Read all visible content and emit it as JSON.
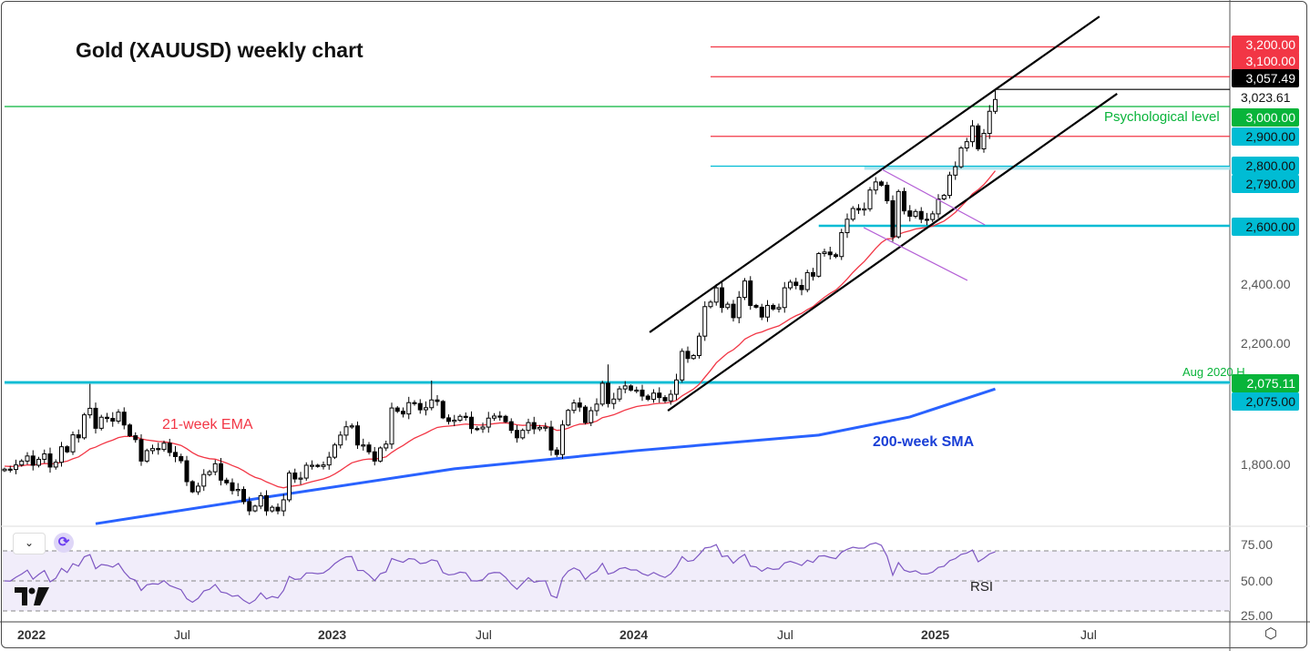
{
  "header": {
    "title": "Gold (XAUUSD) weekly chart"
  },
  "annotations": {
    "psychological": "Psychological level",
    "aug2020": "Aug 2020 H",
    "ema": "21-week EMA",
    "sma": "200-week SMA",
    "rsi": "RSI"
  },
  "price_axis": {
    "ticks": [
      "2,400.00",
      "2,200.00",
      "1,800.00"
    ],
    "last_close": "3,023.61",
    "badges": [
      {
        "label": "3,200.00",
        "bg": "#f23645",
        "fg": "#ffffff"
      },
      {
        "label": "3,100.00",
        "bg": "#f23645",
        "fg": "#ffffff"
      },
      {
        "label": "3,057.49",
        "bg": "#000000",
        "fg": "#ffffff"
      },
      {
        "label": "3,000.00",
        "bg": "#08b43a",
        "fg": "#ffffff"
      },
      {
        "label": "2,900.00",
        "bg": "#00bcd4",
        "fg": "#111111"
      },
      {
        "label": "2,800.00",
        "bg": "#00bcd4",
        "fg": "#111111"
      },
      {
        "label": "2,790.00",
        "bg": "#00bcd4",
        "fg": "#111111"
      },
      {
        "label": "2,600.00",
        "bg": "#00bcd4",
        "fg": "#111111"
      },
      {
        "label": "2,075.11",
        "bg": "#08b43a",
        "fg": "#ffffff"
      },
      {
        "label": "2,075.00",
        "bg": "#00bcd4",
        "fg": "#111111"
      }
    ]
  },
  "rsi_axis": {
    "ticks": [
      "75.00",
      "50.00",
      "25.00"
    ]
  },
  "time_axis": {
    "ticks": [
      "2022",
      "Jul",
      "2023",
      "Jul",
      "2024",
      "Jul",
      "2025",
      "Jul"
    ]
  },
  "controls": {
    "collapse": "⌄",
    "refresh": "⟳",
    "settings": "⬡"
  },
  "colors": {
    "up": "#ffffff",
    "down": "#000000",
    "ema": "#f23645",
    "sma": "#2962ff",
    "rsi": "#7e57c2",
    "level_green": "#08b43a",
    "level_cyan": "#00bcd4",
    "level_red": "#f23645"
  },
  "chart_data": {
    "type": "candlestick",
    "title": "Gold (XAUUSD) weekly chart",
    "interval": "weekly",
    "x_range": [
      "Dec 2021",
      "Mar 2025"
    ],
    "ylim": [
      1600,
      3300
    ],
    "closes": [
      1784,
      1783,
      1798,
      1811,
      1828,
      1797,
      1817,
      1835,
      1791,
      1807,
      1859,
      1842,
      1899,
      1889,
      1966,
      1988,
      1921,
      1958,
      1954,
      1945,
      1975,
      1932,
      1896,
      1883,
      1811,
      1846,
      1853,
      1850,
      1871,
      1840,
      1826,
      1812,
      1742,
      1708,
      1727,
      1766,
      1775,
      1802,
      1747,
      1738,
      1712,
      1716,
      1675,
      1644,
      1660,
      1695,
      1644,
      1656,
      1644,
      1681,
      1771,
      1751,
      1754,
      1797,
      1797,
      1793,
      1798,
      1824,
      1865,
      1898,
      1926,
      1929,
      1865,
      1865,
      1842,
      1811,
      1855,
      1868,
      1989,
      1978,
      1969,
      2007,
      2004,
      1983,
      1990,
      2016,
      2011,
      1956,
      1944,
      1948,
      1961,
      1958,
      1920,
      1919,
      1925,
      1955,
      1962,
      1961,
      1943,
      1914,
      1889,
      1914,
      1940,
      1919,
      1924,
      1925,
      1848,
      1833,
      1932,
      1981,
      2006,
      1992,
      1940,
      1980,
      2002,
      2072,
      2004,
      2019,
      2053,
      2063,
      2049,
      2049,
      2029,
      2018,
      2039,
      2024,
      2013,
      2035,
      2083,
      2179,
      2155,
      2165,
      2230,
      2329,
      2344,
      2392,
      2326,
      2337,
      2292,
      2360,
      2415,
      2333,
      2327,
      2294,
      2333,
      2321,
      2326,
      2392,
      2411,
      2400,
      2386,
      2443,
      2431,
      2507,
      2512,
      2503,
      2497,
      2577,
      2622,
      2658,
      2653,
      2657,
      2720,
      2747,
      2736,
      2684,
      2563,
      2715,
      2650,
      2632,
      2648,
      2622,
      2621,
      2640,
      2690,
      2702,
      2770,
      2798,
      2861,
      2882,
      2935,
      2858,
      2910,
      2984,
      3023.61
    ],
    "high_overrides": {
      "15": 2070,
      "75": 2081,
      "106": 2135,
      "174": 3057.49
    },
    "ema_period": 21,
    "sma200": [
      [
        16,
        1601
      ],
      [
        47,
        1693
      ],
      [
        79,
        1785
      ],
      [
        111,
        1846
      ],
      [
        143,
        1898
      ],
      [
        159,
        1959
      ],
      [
        174,
        2053
      ]
    ],
    "levels": [
      {
        "price": 3200,
        "color": "red",
        "from_index": 124
      },
      {
        "price": 3100,
        "color": "red",
        "from_index": 124
      },
      {
        "price": 3057.49,
        "color": "black",
        "from_index": 174
      },
      {
        "price": 3000,
        "color": "green",
        "from_index": 0
      },
      {
        "price": 2900,
        "color": "red",
        "from_index": 124
      },
      {
        "price": 2800,
        "color": "cyan",
        "from_index": 124
      },
      {
        "price": 2600,
        "color": "cyan",
        "from_index": 143
      },
      {
        "price": 2075,
        "color": "cyan",
        "from_index": 0
      }
    ],
    "zones": [
      {
        "from": 2790,
        "to": 2800,
        "from_index": 151
      },
      {
        "from": 2068,
        "to": 2080,
        "from_index": 0
      }
    ],
    "trendlines": [
      {
        "name": "channel-upper",
        "color": "black",
        "points": [
          [
            113.3,
            2243
          ],
          [
            192.3,
            3302
          ]
        ]
      },
      {
        "name": "channel-lower",
        "color": "black",
        "points": [
          [
            116.5,
            1980
          ],
          [
            195.4,
            3043
          ]
        ]
      },
      {
        "name": "wedge-upper",
        "color": "purple",
        "points": [
          [
            154.1,
            2789
          ],
          [
            172.2,
            2603
          ]
        ]
      },
      {
        "name": "wedge-lower",
        "color": "purple",
        "points": [
          [
            150.9,
            2594
          ],
          [
            169.1,
            2417
          ]
        ]
      }
    ],
    "rsi": {
      "period": 14,
      "levels": [
        75,
        50,
        25
      ],
      "ylim": [
        25,
        75
      ]
    }
  }
}
